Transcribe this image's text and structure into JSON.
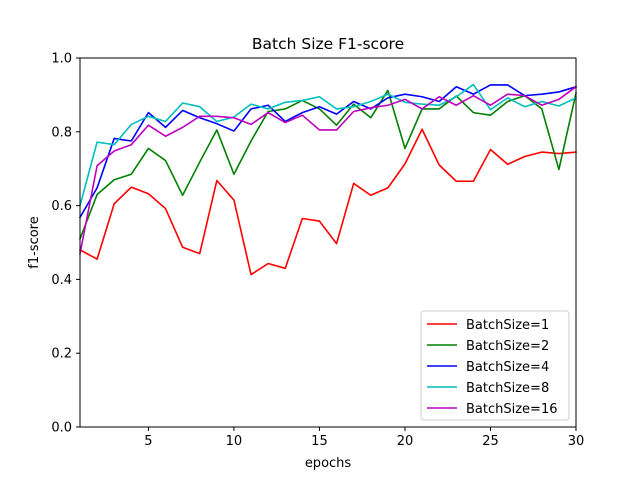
{
  "chart_data": {
    "type": "line",
    "title": "Batch Size F1-score",
    "xlabel": "epochs",
    "ylabel": "f1-score",
    "xlim": [
      1,
      30
    ],
    "ylim": [
      0,
      1
    ],
    "xticks": [
      5,
      10,
      15,
      20,
      25,
      30
    ],
    "yticks": [
      0.0,
      0.2,
      0.4,
      0.6,
      0.8,
      1.0
    ],
    "grid": false,
    "legend_position": "lower-right",
    "x": [
      1,
      2,
      3,
      4,
      5,
      6,
      7,
      8,
      9,
      10,
      11,
      12,
      13,
      14,
      15,
      16,
      17,
      18,
      19,
      20,
      21,
      22,
      23,
      24,
      25,
      26,
      27,
      28,
      29,
      30
    ],
    "series": [
      {
        "name": "BatchSize=1",
        "color": "#ff0000",
        "values": [
          0.48,
          0.455,
          0.605,
          0.65,
          0.632,
          0.592,
          0.487,
          0.47,
          0.668,
          0.615,
          0.413,
          0.443,
          0.43,
          0.565,
          0.558,
          0.497,
          0.66,
          0.628,
          0.648,
          0.713,
          0.807,
          0.71,
          0.666,
          0.666,
          0.752,
          0.712,
          0.733,
          0.745,
          0.741,
          0.745
        ]
      },
      {
        "name": "BatchSize=2",
        "color": "#008000",
        "values": [
          0.51,
          0.63,
          0.67,
          0.685,
          0.755,
          0.722,
          0.628,
          0.718,
          0.805,
          0.685,
          0.775,
          0.855,
          0.862,
          0.885,
          0.862,
          0.818,
          0.875,
          0.838,
          0.912,
          0.755,
          0.862,
          0.862,
          0.897,
          0.852,
          0.845,
          0.882,
          0.898,
          0.862,
          0.698,
          0.905
        ]
      },
      {
        "name": "BatchSize=4",
        "color": "#0000ff",
        "values": [
          0.568,
          0.648,
          0.782,
          0.775,
          0.852,
          0.812,
          0.858,
          0.838,
          0.822,
          0.802,
          0.862,
          0.872,
          0.828,
          0.852,
          0.868,
          0.848,
          0.882,
          0.862,
          0.892,
          0.902,
          0.895,
          0.882,
          0.922,
          0.902,
          0.927,
          0.927,
          0.898,
          0.902,
          0.908,
          0.922
        ]
      },
      {
        "name": "BatchSize=8",
        "color": "#00bfbf",
        "values": [
          0.6,
          0.772,
          0.765,
          0.82,
          0.842,
          0.828,
          0.878,
          0.868,
          0.828,
          0.84,
          0.875,
          0.862,
          0.88,
          0.885,
          0.895,
          0.862,
          0.868,
          0.882,
          0.902,
          0.88,
          0.875,
          0.872,
          0.895,
          0.928,
          0.86,
          0.892,
          0.868,
          0.882,
          0.87,
          0.892
        ]
      },
      {
        "name": "BatchSize=16",
        "color": "#bf00bf",
        "values": [
          0.47,
          0.708,
          0.748,
          0.765,
          0.818,
          0.788,
          0.812,
          0.842,
          0.842,
          0.838,
          0.82,
          0.852,
          0.825,
          0.845,
          0.805,
          0.805,
          0.855,
          0.865,
          0.872,
          0.888,
          0.862,
          0.895,
          0.872,
          0.898,
          0.872,
          0.902,
          0.898,
          0.872,
          0.888,
          0.922
        ]
      }
    ]
  }
}
